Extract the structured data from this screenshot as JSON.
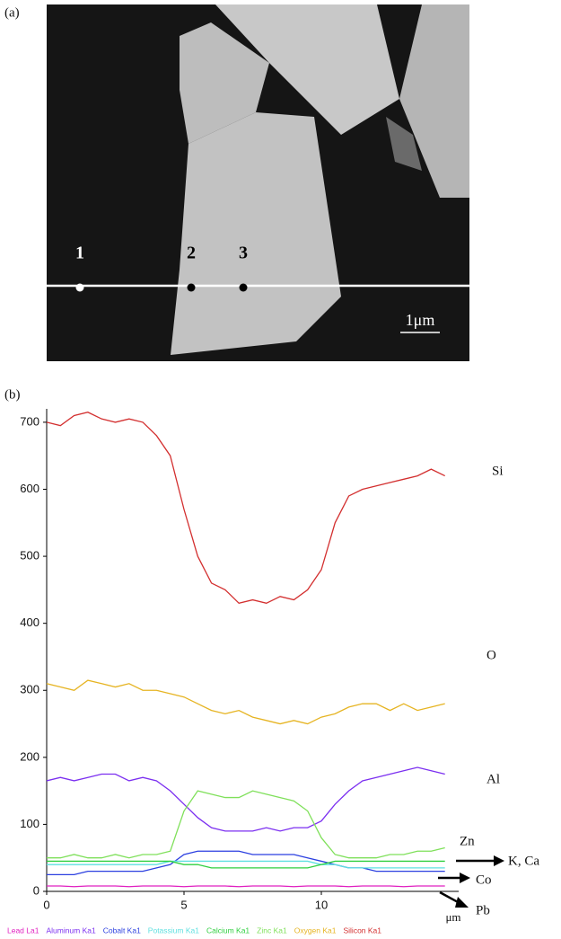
{
  "panel_a": {
    "label": "(a)",
    "points": [
      "1",
      "2",
      "3"
    ],
    "scale_bar": "1μm"
  },
  "chart_data": {
    "type": "line",
    "panel_label": "(b)",
    "xlabel": "μm",
    "x": [
      0,
      0.5,
      1,
      1.5,
      2,
      2.5,
      3,
      3.5,
      4,
      4.5,
      5,
      5.5,
      6,
      6.5,
      7,
      7.5,
      8,
      8.5,
      9,
      9.5,
      10,
      10.5,
      11,
      11.5,
      12,
      12.5,
      13,
      13.5,
      14,
      14.5
    ],
    "xlim": [
      0,
      15
    ],
    "xticks": [
      0,
      5,
      10
    ],
    "ylim": [
      0,
      720
    ],
    "yticks": [
      0,
      100,
      200,
      300,
      400,
      500,
      600,
      700
    ],
    "series": [
      {
        "name": "Lead La1",
        "color": "#e020c0",
        "values": [
          8,
          8,
          7,
          8,
          8,
          8,
          7,
          8,
          8,
          8,
          7,
          8,
          8,
          8,
          7,
          8,
          8,
          8,
          7,
          8,
          8,
          8,
          7,
          8,
          8,
          8,
          7,
          8,
          8,
          8
        ]
      },
      {
        "name": "Aluminum Ka1",
        "color": "#7b2ff0",
        "values": [
          165,
          170,
          165,
          170,
          175,
          175,
          165,
          170,
          165,
          150,
          130,
          110,
          95,
          90,
          90,
          90,
          95,
          90,
          95,
          95,
          105,
          130,
          150,
          165,
          170,
          175,
          180,
          185,
          180,
          175
        ]
      },
      {
        "name": "Cobalt Ka1",
        "color": "#2b3fe0",
        "values": [
          25,
          25,
          25,
          30,
          30,
          30,
          30,
          30,
          35,
          40,
          55,
          60,
          60,
          60,
          60,
          55,
          55,
          55,
          55,
          50,
          45,
          40,
          35,
          35,
          30,
          30,
          30,
          30,
          30,
          30
        ]
      },
      {
        "name": "Potassium Ka1",
        "color": "#5fe0e0",
        "values": [
          40,
          40,
          40,
          40,
          40,
          40,
          40,
          40,
          40,
          45,
          45,
          45,
          45,
          45,
          45,
          45,
          45,
          45,
          45,
          45,
          40,
          40,
          35,
          35,
          35,
          35,
          35,
          35,
          35,
          35
        ]
      },
      {
        "name": "Calcium Ka1",
        "color": "#2fcf3f",
        "values": [
          45,
          45,
          45,
          45,
          45,
          45,
          45,
          45,
          45,
          45,
          40,
          40,
          35,
          35,
          35,
          35,
          35,
          35,
          35,
          35,
          40,
          45,
          45,
          45,
          45,
          45,
          45,
          45,
          45,
          45
        ]
      },
      {
        "name": "Zinc Ka1",
        "color": "#7fe05a",
        "values": [
          50,
          50,
          55,
          50,
          50,
          55,
          50,
          55,
          55,
          60,
          120,
          150,
          145,
          140,
          140,
          150,
          145,
          140,
          135,
          120,
          80,
          55,
          50,
          50,
          50,
          55,
          55,
          60,
          60,
          65
        ]
      },
      {
        "name": "Oxygen Ka1",
        "color": "#e6b422",
        "values": [
          310,
          305,
          300,
          315,
          310,
          305,
          310,
          300,
          300,
          295,
          290,
          280,
          270,
          265,
          270,
          260,
          255,
          250,
          255,
          250,
          260,
          265,
          275,
          280,
          280,
          270,
          280,
          270,
          275,
          280
        ]
      },
      {
        "name": "Silicon Ka1",
        "color": "#d32f2f",
        "values": [
          700,
          695,
          710,
          715,
          705,
          700,
          705,
          700,
          680,
          650,
          570,
          500,
          460,
          450,
          430,
          435,
          430,
          440,
          435,
          450,
          480,
          550,
          590,
          600,
          605,
          610,
          615,
          620,
          630,
          620
        ]
      }
    ],
    "annotations": [
      "Si",
      "O",
      "Al",
      "Zn",
      "K, Ca",
      "Co",
      "Pb"
    ]
  }
}
